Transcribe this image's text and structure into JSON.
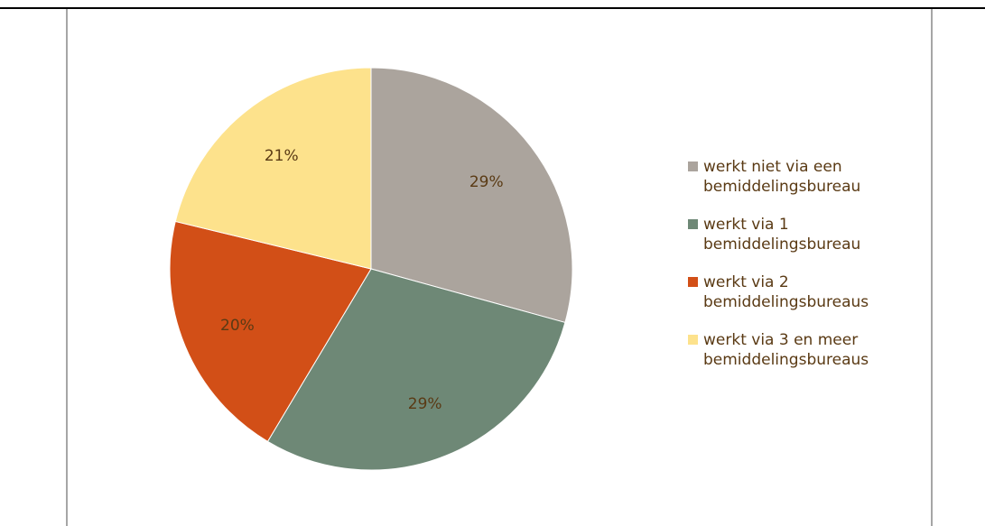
{
  "chart_data": {
    "type": "pie",
    "title": "",
    "legend_position": "right",
    "series": [
      {
        "name": "",
        "labels": [
          "werkt niet via een bemiddelingsbureau",
          "werkt via 1 bemiddelingsbureau",
          "werkt via 2 bemiddelingsbureaus",
          "werkt via 3 en meer bemiddelingsbureaus"
        ],
        "values": [
          29,
          29,
          20,
          21
        ],
        "data_labels": [
          "29%",
          "29%",
          "20%",
          "21%"
        ],
        "colors": [
          "#aba49d",
          "#6e8876",
          "#d24f17",
          "#fde28c"
        ]
      }
    ]
  }
}
